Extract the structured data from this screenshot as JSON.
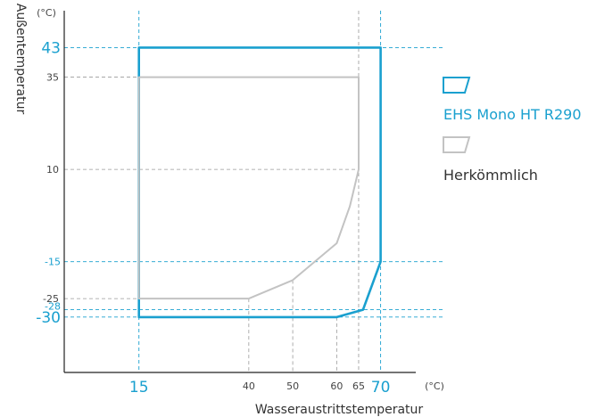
{
  "chart_data": {
    "type": "area",
    "title": "",
    "xlabel": "Wasseraustrittstemperatur",
    "ylabel": "Außentemperatur",
    "x_unit": "(°C)",
    "y_unit": "(°C)",
    "xlim": [
      -2,
      78
    ],
    "ylim": [
      -45,
      53
    ],
    "x_ticks_gray": [
      40,
      50,
      60,
      65
    ],
    "x_ticks_blue": [
      15,
      70
    ],
    "y_ticks_gray": [
      35,
      10,
      -25
    ],
    "y_ticks_blue": [
      43,
      -15,
      -28,
      -30
    ],
    "series": [
      {
        "name": "EHS Mono HT R290",
        "color": "#1aa0cf",
        "points": [
          [
            15,
            -30
          ],
          [
            15,
            43
          ],
          [
            70,
            43
          ],
          [
            70,
            -15
          ],
          [
            66,
            -28
          ],
          [
            60,
            -30
          ]
        ]
      },
      {
        "name": "Herkömmlich",
        "color": "#c3c3c3",
        "points": [
          [
            15,
            -25
          ],
          [
            15,
            35
          ],
          [
            65,
            35
          ],
          [
            65,
            10
          ],
          [
            63,
            0
          ],
          [
            60,
            -10
          ],
          [
            50,
            -20
          ],
          [
            40,
            -25
          ]
        ]
      }
    ],
    "legend_position": "right"
  }
}
